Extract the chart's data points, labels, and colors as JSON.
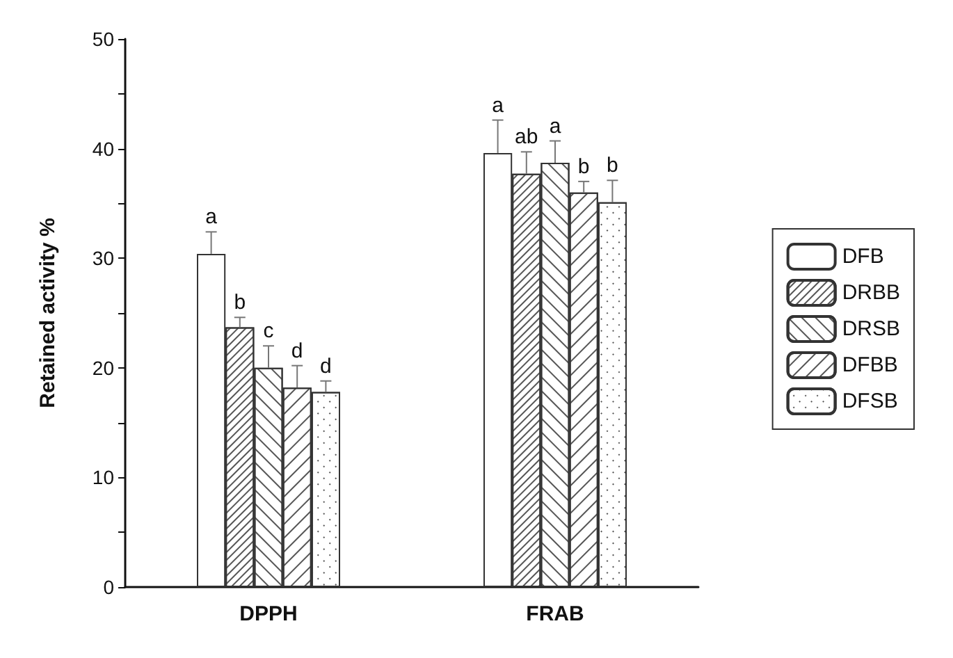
{
  "chart_data": {
    "type": "bar",
    "ylabel": "Retained activity %",
    "categories": [
      "DPPH",
      "FRAB"
    ],
    "series": [
      {
        "name": "DFB",
        "color": "#ffffff",
        "values": [
          30.4,
          39.6
        ],
        "errors": [
          2.0,
          3.0
        ],
        "value_labels": [
          "a",
          "a"
        ]
      },
      {
        "name": "DRBB",
        "color": "#ffffff",
        "values": [
          23.7,
          37.7
        ],
        "errors": [
          0.9,
          2.0
        ],
        "value_labels": [
          "b",
          "ab"
        ]
      },
      {
        "name": "DRSB",
        "color": "#ffffff",
        "values": [
          20.0,
          38.7
        ],
        "errors": [
          2.0,
          2.0
        ],
        "value_labels": [
          "c",
          "a"
        ]
      },
      {
        "name": "DFBB",
        "color": "#ffffff",
        "values": [
          18.2,
          36.0
        ],
        "errors": [
          2.0,
          1.0
        ],
        "value_labels": [
          "d",
          "b"
        ]
      },
      {
        "name": "DFSB",
        "color": "#ffffff",
        "values": [
          17.8,
          35.1
        ],
        "errors": [
          1.0,
          2.0
        ],
        "value_labels": [
          "d",
          "b"
        ]
      }
    ],
    "ylim": [
      0,
      50
    ],
    "yticks": [
      0,
      {
        "value": 5,
        "label": null
      },
      10,
      {
        "value": 15,
        "label": null
      },
      20,
      {
        "value": 25,
        "label": null
      },
      30,
      {
        "value": 35,
        "label": null
      },
      40,
      {
        "value": 45,
        "label": null
      },
      50
    ],
    "grid": false,
    "legend": "right"
  }
}
